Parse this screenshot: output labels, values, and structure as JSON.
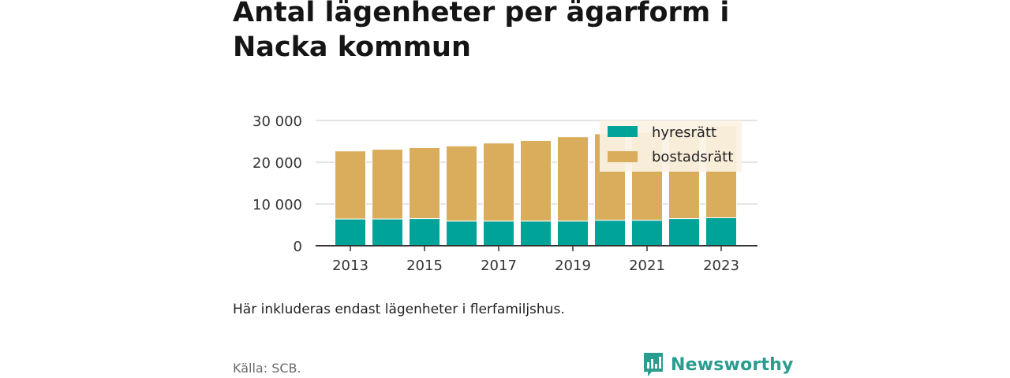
{
  "title": "Antal lägenheter per ägarform i Nacka kommun",
  "note": "Här inkluderas endast lägenheter i flerfamiljshus.",
  "source": "Källa: SCB.",
  "brand": {
    "name": "Newsworthy",
    "icon": "newsworthy-logo-icon"
  },
  "colors": {
    "hyresratt": "#00a398",
    "bostadsratt": "#d9ad5c",
    "grid": "#dcdcdc",
    "axis": "#333333",
    "brand": "#2a9d8f"
  },
  "chart_data": {
    "type": "bar",
    "stacked": true,
    "categories": [
      "2013",
      "2014",
      "2015",
      "2016",
      "2017",
      "2018",
      "2019",
      "2020",
      "2021",
      "2022",
      "2023"
    ],
    "x_tick_labels": [
      "2013",
      "2015",
      "2017",
      "2019",
      "2021",
      "2023"
    ],
    "series": [
      {
        "name": "hyresrätt",
        "values": [
          6400,
          6400,
          6500,
          5900,
          5900,
          5900,
          5900,
          6100,
          6100,
          6500,
          6700
        ]
      },
      {
        "name": "bostadsrätt",
        "values": [
          16300,
          16700,
          17000,
          18000,
          18700,
          19300,
          20200,
          20700,
          21000,
          21500,
          22000
        ]
      }
    ],
    "ylim": [
      0,
      30000
    ],
    "y_ticks": [
      0,
      10000,
      20000,
      30000
    ],
    "y_tick_labels": [
      "0",
      "10 000",
      "20 000",
      "30 000"
    ],
    "grid": true,
    "legend_position": "top-right",
    "xlabel": "",
    "ylabel": ""
  }
}
